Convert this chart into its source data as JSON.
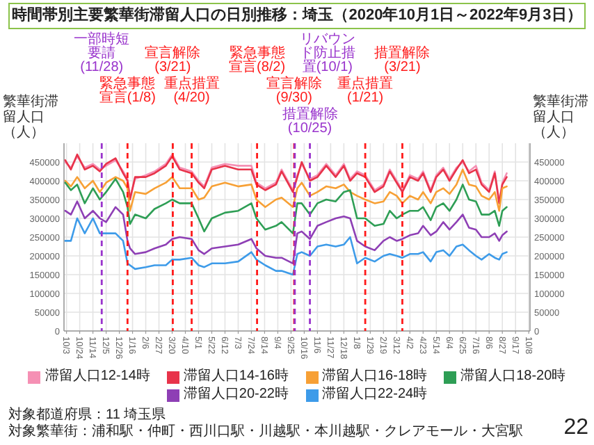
{
  "chart_data": {
    "type": "line",
    "title": "時間帯別主要繁華街滞留人口の日別推移：埼玉（2020年10月1日～2022年9月3日）",
    "ylabel": "繁華街滞留人口（人）",
    "y2label": "繁華街滞留人口（人）",
    "x": [
      "2020-10-01",
      "2020-10-10",
      "2020-10-20",
      "2020-11-01",
      "2020-11-14",
      "2020-11-25",
      "2020-12-05",
      "2020-12-20",
      "2021-01-01",
      "2021-01-08",
      "2021-01-12",
      "2021-01-20",
      "2021-02-06",
      "2021-02-20",
      "2021-03-10",
      "2021-03-20",
      "2021-04-01",
      "2021-04-20",
      "2021-05-01",
      "2021-05-10",
      "2021-05-22",
      "2021-06-12",
      "2021-07-03",
      "2021-07-24",
      "2021-08-01",
      "2021-08-15",
      "2021-09-01",
      "2021-09-10",
      "2021-09-28",
      "2021-10-05",
      "2021-10-12",
      "2021-10-25",
      "2021-11-06",
      "2021-11-20",
      "2021-12-05",
      "2021-12-18",
      "2021-12-28",
      "2022-01-08",
      "2022-01-21",
      "2022-02-05",
      "2022-02-19",
      "2022-03-01",
      "2022-03-12",
      "2022-03-21",
      "2022-04-02",
      "2022-04-15",
      "2022-04-23",
      "2022-05-05",
      "2022-05-14",
      "2022-05-25",
      "2022-06-04",
      "2022-06-15",
      "2022-06-25",
      "2022-07-05",
      "2022-07-16",
      "2022-07-25",
      "2022-08-06",
      "2022-08-15",
      "2022-08-22",
      "2022-08-27",
      "2022-09-03"
    ],
    "series": [
      {
        "name": "滞留人口12-14時",
        "color": "#f590b4",
        "values": [
          450000,
          435000,
          465000,
          435000,
          445000,
          430000,
          440000,
          455000,
          425000,
          405000,
          355000,
          405000,
          415000,
          425000,
          445000,
          470000,
          435000,
          425000,
          400000,
          385000,
          435000,
          445000,
          440000,
          440000,
          395000,
          380000,
          395000,
          430000,
          375000,
          415000,
          445000,
          405000,
          415000,
          445000,
          415000,
          445000,
          405000,
          425000,
          415000,
          375000,
          390000,
          430000,
          400000,
          375000,
          415000,
          405000,
          425000,
          375000,
          415000,
          435000,
          405000,
          435000,
          450000,
          425000,
          440000,
          395000,
          375000,
          425000,
          345000,
          395000,
          420000
        ]
      },
      {
        "name": "滞留人口14-16時",
        "color": "#e8334a",
        "values": [
          455000,
          430000,
          470000,
          430000,
          440000,
          425000,
          445000,
          460000,
          420000,
          400000,
          350000,
          410000,
          410000,
          420000,
          440000,
          465000,
          430000,
          420000,
          395000,
          380000,
          430000,
          440000,
          430000,
          430000,
          390000,
          375000,
          390000,
          425000,
          370000,
          410000,
          450000,
          400000,
          410000,
          440000,
          410000,
          440000,
          400000,
          420000,
          410000,
          370000,
          385000,
          425000,
          395000,
          370000,
          410000,
          400000,
          420000,
          370000,
          410000,
          430000,
          400000,
          430000,
          455000,
          420000,
          430000,
          390000,
          370000,
          420000,
          340000,
          390000,
          410000
        ]
      },
      {
        "name": "滞留人口16-18時",
        "color": "#f7a035",
        "values": [
          400000,
          385000,
          410000,
          380000,
          400000,
          370000,
          395000,
          410000,
          400000,
          380000,
          320000,
          370000,
          365000,
          380000,
          395000,
          410000,
          380000,
          380000,
          350000,
          355000,
          385000,
          395000,
          385000,
          390000,
          350000,
          330000,
          350000,
          355000,
          330000,
          380000,
          395000,
          360000,
          370000,
          385000,
          380000,
          390000,
          370000,
          360000,
          350000,
          340000,
          345000,
          370000,
          360000,
          340000,
          360000,
          350000,
          370000,
          340000,
          370000,
          380000,
          365000,
          390000,
          430000,
          390000,
          385000,
          360000,
          350000,
          370000,
          320000,
          380000,
          385000
        ]
      },
      {
        "name": "滞留人口18-20時",
        "color": "#2e9e55",
        "values": [
          395000,
          375000,
          390000,
          340000,
          380000,
          350000,
          370000,
          405000,
          370000,
          330000,
          285000,
          310000,
          300000,
          325000,
          340000,
          350000,
          340000,
          340000,
          300000,
          265000,
          300000,
          315000,
          320000,
          340000,
          300000,
          270000,
          280000,
          290000,
          260000,
          340000,
          340000,
          310000,
          340000,
          350000,
          345000,
          370000,
          375000,
          300000,
          300000,
          280000,
          285000,
          320000,
          300000,
          310000,
          320000,
          320000,
          330000,
          295000,
          330000,
          340000,
          320000,
          350000,
          390000,
          350000,
          345000,
          310000,
          310000,
          320000,
          280000,
          320000,
          330000
        ]
      },
      {
        "name": "滞留人口20-22時",
        "color": "#8e3fb5",
        "values": [
          320000,
          310000,
          345000,
          300000,
          320000,
          300000,
          290000,
          330000,
          310000,
          240000,
          220000,
          205000,
          210000,
          220000,
          230000,
          245000,
          250000,
          245000,
          215000,
          205000,
          220000,
          225000,
          230000,
          245000,
          220000,
          200000,
          195000,
          195000,
          180000,
          260000,
          265000,
          245000,
          280000,
          290000,
          300000,
          305000,
          300000,
          240000,
          225000,
          215000,
          240000,
          250000,
          240000,
          245000,
          255000,
          260000,
          280000,
          255000,
          265000,
          290000,
          270000,
          290000,
          310000,
          275000,
          270000,
          250000,
          250000,
          260000,
          240000,
          255000,
          265000
        ]
      },
      {
        "name": "滞留人口22-24時",
        "color": "#3d9be9",
        "values": [
          240000,
          240000,
          300000,
          260000,
          300000,
          260000,
          260000,
          260000,
          240000,
          180000,
          175000,
          165000,
          170000,
          175000,
          175000,
          190000,
          190000,
          195000,
          175000,
          170000,
          180000,
          180000,
          185000,
          210000,
          190000,
          175000,
          160000,
          160000,
          150000,
          205000,
          210000,
          200000,
          225000,
          230000,
          225000,
          230000,
          250000,
          180000,
          195000,
          185000,
          200000,
          205000,
          200000,
          195000,
          205000,
          205000,
          210000,
          185000,
          210000,
          215000,
          200000,
          225000,
          230000,
          215000,
          200000,
          190000,
          205000,
          195000,
          190000,
          205000,
          210000
        ]
      }
    ],
    "xlim": [
      "2020-09-29",
      "2022-10-10"
    ],
    "xticks": [
      {
        "value": "2020-10-03",
        "label": "10/3"
      },
      {
        "value": "2020-10-24",
        "label": "10/24"
      },
      {
        "value": "2020-11-14",
        "label": "11/14"
      },
      {
        "value": "2020-12-05",
        "label": "12/5"
      },
      {
        "value": "2020-12-26",
        "label": "12/26"
      },
      {
        "value": "2021-01-16",
        "label": "1/16"
      },
      {
        "value": "2021-02-06",
        "label": "2/6"
      },
      {
        "value": "2021-02-27",
        "label": "2/27"
      },
      {
        "value": "2021-03-20",
        "label": "3/20"
      },
      {
        "value": "2021-04-10",
        "label": "4/10"
      },
      {
        "value": "2021-05-01",
        "label": "5/1"
      },
      {
        "value": "2021-05-22",
        "label": "5/22"
      },
      {
        "value": "2021-06-12",
        "label": "6/12"
      },
      {
        "value": "2021-07-03",
        "label": "7/3"
      },
      {
        "value": "2021-07-24",
        "label": "7/24"
      },
      {
        "value": "2021-08-14",
        "label": "8/14"
      },
      {
        "value": "2021-09-04",
        "label": "9/4"
      },
      {
        "value": "2021-09-25",
        "label": "9/25"
      },
      {
        "value": "2021-10-16",
        "label": "10/16"
      },
      {
        "value": "2021-11-06",
        "label": "11/6"
      },
      {
        "value": "2021-11-27",
        "label": "11/27"
      },
      {
        "value": "2021-12-18",
        "label": "12/18"
      },
      {
        "value": "2022-01-08",
        "label": "1/8"
      },
      {
        "value": "2022-01-29",
        "label": "1/29"
      },
      {
        "value": "2022-02-19",
        "label": "2/19"
      },
      {
        "value": "2022-03-12",
        "label": "3/12"
      },
      {
        "value": "2022-04-02",
        "label": "4/2"
      },
      {
        "value": "2022-04-23",
        "label": "4/23"
      },
      {
        "value": "2022-05-14",
        "label": "5/14"
      },
      {
        "value": "2022-06-04",
        "label": "6/4"
      },
      {
        "value": "2022-06-25",
        "label": "6/25"
      },
      {
        "value": "2022-07-16",
        "label": "7/16"
      },
      {
        "value": "2022-08-06",
        "label": "8/6"
      },
      {
        "value": "2022-08-27",
        "label": "8/27"
      },
      {
        "value": "2022-09-17",
        "label": "9/17"
      },
      {
        "value": "2022-10-08",
        "label": "10/8"
      }
    ],
    "ylim": [
      0,
      500000
    ],
    "yticks": [
      0,
      50000,
      100000,
      150000,
      200000,
      250000,
      300000,
      350000,
      400000,
      450000
    ],
    "y2lim": [
      0,
      500000
    ],
    "y2ticks": [
      0,
      50000,
      100000,
      150000,
      200000,
      250000,
      300000,
      350000,
      400000,
      450000
    ],
    "ref_lines": [
      {
        "axis": "x",
        "value": "2020-11-28",
        "label": "一部時短要請(11/28)",
        "color": "#9933cc",
        "line_style": "dashed"
      },
      {
        "axis": "x",
        "value": "2021-01-08",
        "label": "緊急事態宣言(1/8)",
        "color": "#ff1a1a",
        "line_style": "dashed"
      },
      {
        "axis": "x",
        "value": "2021-03-21",
        "label": "宣言解除(3/21)",
        "color": "#ff1a1a",
        "line_style": "dashed"
      },
      {
        "axis": "x",
        "value": "2021-04-20",
        "label": "重点措置(4/20)",
        "color": "#ff1a1a",
        "line_style": "dashed"
      },
      {
        "axis": "x",
        "value": "2021-08-02",
        "label": "緊急事態宣言(8/2)",
        "color": "#ff1a1a",
        "line_style": "dashed"
      },
      {
        "axis": "x",
        "value": "2021-09-30",
        "label": "宣言解除(9/30)",
        "color": "#ff1a1a",
        "line_style": "dashed"
      },
      {
        "axis": "x",
        "value": "2021-10-01",
        "label": "リバウンド防止措置(10/1)",
        "color": "#9933cc",
        "line_style": "dashed"
      },
      {
        "axis": "x",
        "value": "2021-10-25",
        "label": "措置解除(10/25)",
        "color": "#9933cc",
        "line_style": "dashed"
      },
      {
        "axis": "x",
        "value": "2022-01-21",
        "label": "重点措置(1/21)",
        "color": "#ff1a1a",
        "line_style": "dashed"
      },
      {
        "axis": "x",
        "value": "2022-03-21",
        "label": "措置解除(3/21)",
        "color": "#ff1a1a",
        "line_style": "dashed"
      }
    ],
    "grid": true,
    "legend": "bottom",
    "annotations": [
      "対象都道府県：11 埼玉県",
      "対象繁華街：浦和駅・仲町・西川口駅・川越駅・本川越駅・クレアモール・大宮駅",
      "22"
    ]
  }
}
